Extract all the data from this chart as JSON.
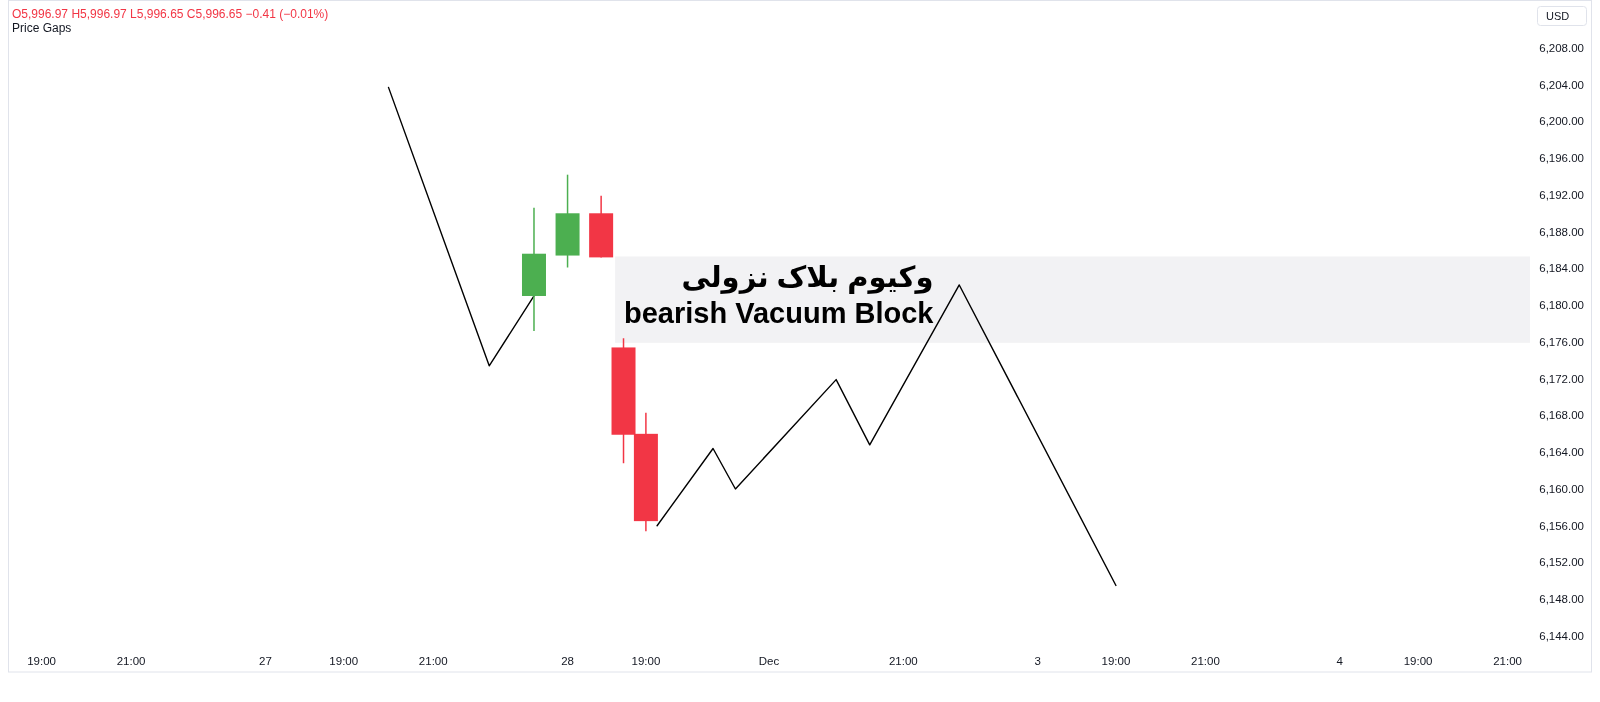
{
  "chart_data": {
    "type": "candlestick",
    "categories": [
      null,
      null,
      null,
      "19:00",
      null,
      null,
      null,
      null,
      null,
      null,
      null,
      "21:00",
      null,
      null,
      null,
      null,
      null,
      null,
      null,
      null,
      null,
      null,
      null,
      "27",
      null,
      null,
      null,
      null,
      null,
      null,
      "19:00",
      null,
      null,
      null,
      null,
      null,
      null,
      null,
      "21:00",
      null,
      null,
      null,
      null,
      null,
      null,
      null,
      null,
      null,
      null,
      null,
      "28",
      null,
      null,
      null,
      null,
      null,
      null,
      "19:00",
      null,
      null,
      null,
      null,
      null,
      null,
      null,
      null,
      null,
      null,
      "Dec",
      null,
      null,
      null,
      null,
      null,
      null,
      null,
      null,
      null,
      null,
      null,
      "21:00",
      null,
      null,
      null,
      null,
      null,
      null,
      null,
      null,
      null,
      null,
      null,
      "3",
      null,
      null,
      null,
      null,
      null,
      null,
      "19:00",
      null,
      null,
      null,
      null,
      null,
      null,
      null,
      "21:00",
      null,
      null,
      null,
      null,
      null,
      null,
      null,
      null,
      null,
      null,
      null,
      "4",
      null,
      null,
      null,
      null,
      null,
      null,
      "19:00",
      null,
      null,
      null,
      null,
      null,
      null,
      null,
      "21:00",
      null,
      null
    ],
    "ohlc": [
      null,
      null,
      null,
      null,
      null,
      null,
      null,
      null,
      null,
      null,
      null,
      null,
      null,
      null,
      null,
      null,
      null,
      null,
      null,
      null,
      null,
      null,
      null,
      null,
      null,
      null,
      null,
      null,
      null,
      null,
      null,
      null,
      null,
      null,
      null,
      null,
      null,
      null,
      null,
      null,
      null,
      null,
      null,
      null,
      null,
      null,
      null,
      [
        6181.0,
        6190.6,
        6177.2,
        6185.6
      ],
      null,
      null,
      [
        6185.4,
        6194.2,
        6184.1,
        6190.0
      ],
      null,
      null,
      [
        6190.0,
        6191.9,
        6185.2,
        6185.2
      ],
      null,
      [
        6175.4,
        6176.4,
        6162.8,
        6165.9
      ],
      null,
      [
        6166.0,
        6168.3,
        6155.4,
        6156.5
      ],
      null,
      null,
      null,
      null,
      null,
      null,
      null,
      null,
      null,
      null,
      null,
      null,
      null,
      null,
      null,
      null,
      null,
      null,
      null,
      null,
      null,
      null,
      null,
      null,
      null,
      null,
      null,
      null,
      null,
      null,
      null,
      null,
      null,
      null,
      null,
      null,
      null,
      null,
      null,
      null,
      null,
      null,
      null,
      null,
      null,
      null,
      null,
      null,
      null,
      null,
      null,
      null,
      null,
      null,
      null,
      null,
      null,
      null,
      null,
      null,
      null,
      null,
      null,
      null,
      null,
      null,
      null,
      null,
      null,
      null,
      null,
      null,
      null,
      null,
      null,
      null,
      null,
      null,
      null
    ],
    "colors": [
      null,
      null,
      null,
      null,
      null,
      null,
      null,
      null,
      null,
      null,
      null,
      null,
      null,
      null,
      null,
      null,
      null,
      null,
      null,
      null,
      null,
      null,
      null,
      null,
      null,
      null,
      null,
      null,
      null,
      null,
      null,
      null,
      null,
      null,
      null,
      null,
      null,
      null,
      null,
      null,
      null,
      null,
      null,
      null,
      null,
      null,
      null,
      "#4caf50",
      null,
      null,
      "#4caf50",
      null,
      null,
      "#f23645",
      null,
      "#f23645",
      null,
      "#f23645",
      null,
      null,
      null,
      null,
      null,
      null,
      null,
      null,
      null,
      null,
      null,
      null,
      null,
      null,
      null,
      null,
      null,
      null,
      null,
      null,
      null,
      null,
      null,
      null,
      null,
      null,
      null,
      null,
      null,
      null,
      null,
      null,
      null,
      null,
      null,
      null,
      null,
      null,
      null,
      null,
      null,
      null,
      null,
      null,
      null,
      null,
      null,
      null,
      null,
      null,
      null,
      null,
      null,
      null,
      null,
      null,
      null,
      null,
      null,
      null,
      null,
      null,
      null,
      null,
      null,
      null,
      null,
      null,
      null,
      null,
      null,
      null,
      null,
      null,
      null,
      null,
      null,
      null,
      null
    ],
    "series": [
      {
        "type": "line",
        "color": "#000000",
        "values": [
          null,
          null,
          null,
          null,
          null,
          null,
          null,
          null,
          null,
          null,
          null,
          null,
          null,
          null,
          null,
          null,
          null,
          null,
          null,
          null,
          null,
          null,
          null,
          null,
          null,
          null,
          null,
          null,
          null,
          null,
          null,
          null,
          null,
          null,
          6203.7,
          null,
          null,
          null,
          null,
          null,
          null,
          null,
          null,
          6173.4,
          null,
          null,
          null,
          6181.0,
          null,
          null,
          null,
          null,
          null,
          null,
          null,
          null,
          null,
          null,
          null,
          null,
          null,
          null,
          null,
          null,
          null,
          null,
          null,
          null,
          null,
          null,
          null,
          null,
          null,
          null,
          null,
          null,
          null,
          null,
          null,
          null,
          null,
          null,
          null,
          null,
          null,
          null,
          null,
          null,
          null,
          null,
          null,
          null,
          null,
          null,
          null,
          null,
          null,
          null,
          null,
          null,
          null,
          null,
          null,
          null,
          null,
          null,
          null,
          null,
          null,
          null,
          null,
          null,
          null,
          null,
          null,
          null,
          null,
          null,
          null,
          null,
          null,
          null,
          null,
          null,
          null,
          null,
          null,
          null,
          null,
          null,
          null,
          null,
          null,
          null,
          null,
          null,
          null
        ]
      },
      {
        "type": "line",
        "color": "#000000",
        "values": [
          null,
          null,
          null,
          null,
          null,
          null,
          null,
          null,
          null,
          null,
          null,
          null,
          null,
          null,
          null,
          null,
          null,
          null,
          null,
          null,
          null,
          null,
          null,
          null,
          null,
          null,
          null,
          null,
          null,
          null,
          null,
          null,
          null,
          null,
          null,
          null,
          null,
          null,
          null,
          null,
          null,
          null,
          null,
          null,
          null,
          null,
          null,
          null,
          null,
          null,
          null,
          null,
          null,
          null,
          null,
          null,
          null,
          null,
          6156.0,
          null,
          null,
          null,
          null,
          6164.4,
          null,
          6160.0,
          null,
          null,
          null,
          null,
          null,
          null,
          null,
          null,
          6171.9,
          null,
          null,
          6164.8,
          null,
          null,
          null,
          null,
          null,
          null,
          null,
          6182.2,
          null,
          null,
          null,
          null,
          null,
          null,
          null,
          null,
          null,
          null,
          null,
          null,
          null,
          6149.5,
          null,
          null,
          null,
          null,
          null,
          null,
          null,
          null,
          null,
          null,
          null,
          null,
          null,
          null,
          null,
          null,
          null,
          null,
          null,
          null,
          null,
          null,
          null,
          null,
          null,
          null,
          null,
          null,
          null,
          null,
          null,
          null,
          null,
          null,
          null,
          null,
          null
        ]
      }
    ],
    "ylim": [
      6144,
      6213.1
    ],
    "yticks": [
      {
        "value": 6144,
        "label": "6,144.00"
      },
      {
        "value": 6148,
        "label": "6,148.00"
      },
      {
        "value": 6152,
        "label": "6,152.00"
      },
      {
        "value": 6156,
        "label": "6,156.00"
      },
      {
        "value": 6160,
        "label": "6,160.00"
      },
      {
        "value": 6164,
        "label": "6,164.00"
      },
      {
        "value": 6168,
        "label": "6,168.00"
      },
      {
        "value": 6172,
        "label": "6,172.00"
      },
      {
        "value": 6176,
        "label": "6,176.00"
      },
      {
        "value": 6180,
        "label": "6,180.00"
      },
      {
        "value": 6184,
        "label": "6,184.00"
      },
      {
        "value": 6188,
        "label": "6,188.00"
      },
      {
        "value": 6192,
        "label": "6,192.00"
      },
      {
        "value": 6196,
        "label": "6,196.00"
      },
      {
        "value": 6200,
        "label": "6,200.00"
      },
      {
        "value": 6204,
        "label": "6,204.00"
      },
      {
        "value": 6208,
        "label": "6,208.00"
      }
    ],
    "ylabel": "USD",
    "bands": [
      {
        "axis": "y",
        "from": 6175.9,
        "to": 6185.3,
        "color": "#f2f2f4",
        "label": "وکیوم بلاک نزولی\nbearish Vacuum Block"
      }
    ],
    "annotations": [
      "O5,996.97 H5,996.97 L5,996.65 C5,996.65 −0.41 (−0.01%)",
      "Price Gaps"
    ]
  }
}
